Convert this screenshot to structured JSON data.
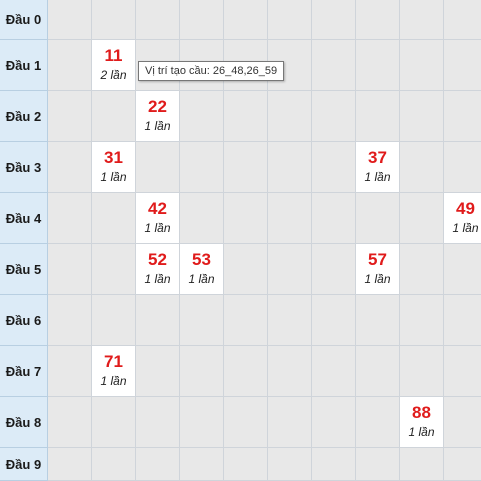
{
  "rows": [
    {
      "label": "Đầu 0",
      "cells": []
    },
    {
      "label": "Đầu 1",
      "cells": [
        {
          "col": 1,
          "number": "11",
          "count": "2 lần"
        }
      ]
    },
    {
      "label": "Đầu 2",
      "cells": [
        {
          "col": 2,
          "number": "22",
          "count": "1 lần"
        }
      ]
    },
    {
      "label": "Đầu 3",
      "cells": [
        {
          "col": 1,
          "number": "31",
          "count": "1 lần"
        },
        {
          "col": 7,
          "number": "37",
          "count": "1 lần"
        }
      ]
    },
    {
      "label": "Đầu 4",
      "cells": [
        {
          "col": 2,
          "number": "42",
          "count": "1 lần"
        },
        {
          "col": 9,
          "number": "49",
          "count": "1 lần"
        }
      ]
    },
    {
      "label": "Đầu 5",
      "cells": [
        {
          "col": 2,
          "number": "52",
          "count": "1 lần"
        },
        {
          "col": 3,
          "number": "53",
          "count": "1 lần"
        },
        {
          "col": 7,
          "number": "57",
          "count": "1 lần"
        }
      ]
    },
    {
      "label": "Đầu 6",
      "cells": []
    },
    {
      "label": "Đầu 7",
      "cells": [
        {
          "col": 1,
          "number": "71",
          "count": "1 lần"
        }
      ]
    },
    {
      "label": "Đầu 8",
      "cells": [
        {
          "col": 8,
          "number": "88",
          "count": "1 lần"
        }
      ]
    },
    {
      "label": "Đầu 9",
      "cells": []
    }
  ],
  "tooltip": {
    "text": "Vị trí tạo cầu: 26_48,26_59"
  },
  "colors": {
    "number": "#e01b1b",
    "header_bg": "#dcebf7",
    "empty_bg": "#e8e8e8"
  }
}
